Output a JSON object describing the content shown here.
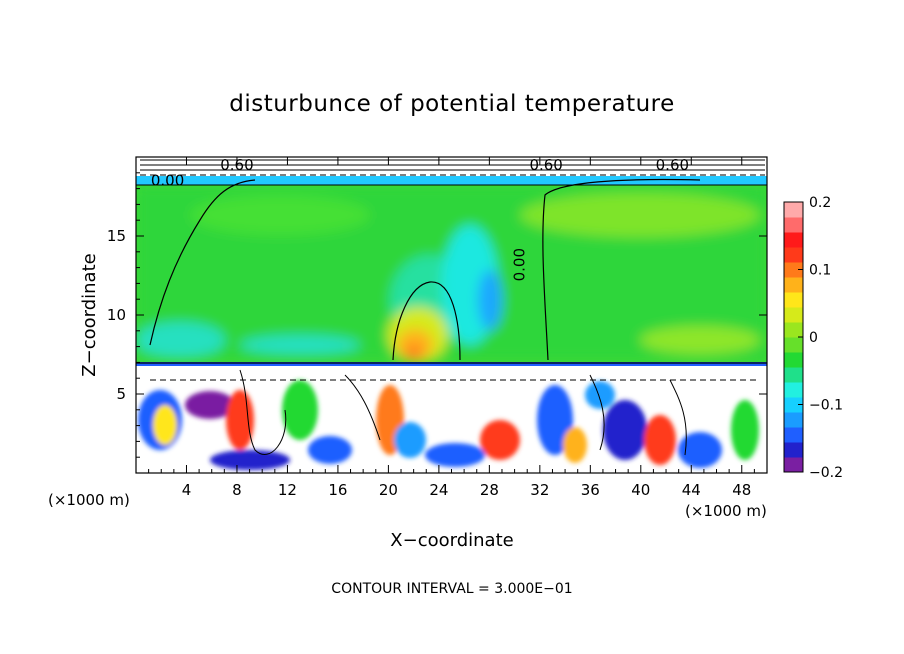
{
  "chart_data": {
    "type": "heatmap",
    "title": "disturbunce of potential temperature",
    "xlabel": "X−coordinate",
    "ylabel": "Z−coordinate",
    "x_unit_left": "(×1000 m)",
    "x_unit_right": "(×1000 m)",
    "xlim": [
      0,
      50
    ],
    "ylim": [
      0,
      20
    ],
    "xticks": [
      4,
      8,
      12,
      16,
      20,
      24,
      28,
      32,
      36,
      40,
      44,
      48
    ],
    "xtick_labels": [
      "4",
      "8",
      "12",
      "16",
      "20",
      "24",
      "28",
      "32",
      "36",
      "40",
      "44",
      "48"
    ],
    "yticks": [
      5,
      10,
      15
    ],
    "ytick_labels": [
      "5",
      "10",
      "15"
    ],
    "colorbar": {
      "range": [
        -0.2,
        0.2
      ],
      "tick_values": [
        0.2,
        0.1,
        0,
        -0.1,
        -0.2
      ],
      "tick_labels": [
        "0.2",
        "0.1",
        "0",
        "−0.1",
        "−0.2"
      ],
      "colors": [
        "#7a1fa2",
        "#2222cc",
        "#1f5fff",
        "#1a9cff",
        "#16d0ff",
        "#22f0e0",
        "#1fe08a",
        "#22d933",
        "#66e02a",
        "#9ae61f",
        "#d6ea1a",
        "#ffe61a",
        "#ffb21a",
        "#ff7a1a",
        "#ff3a1a",
        "#ff1a1a",
        "#ff6b6b",
        "#ffaaaa"
      ]
    },
    "contour_labels": [
      {
        "text": "0.00",
        "x": 2.5,
        "y": 18.5
      },
      {
        "text": "0.00",
        "x": 30.8,
        "y": 13.5
      },
      {
        "text": "0.60",
        "x": 8.0,
        "y": 19.5
      },
      {
        "text": "0.60",
        "x": 32.5,
        "y": 19.5
      },
      {
        "text": "0.60",
        "x": 42.5,
        "y": 19.5
      }
    ],
    "contour_interval_label": "CONTOUR INTERVAL = 3.000E−01"
  }
}
